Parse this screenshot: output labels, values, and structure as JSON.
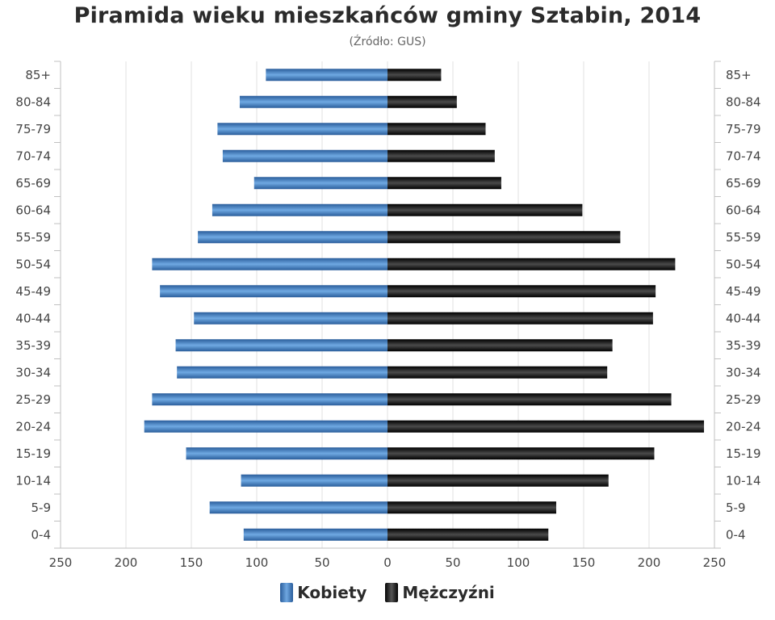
{
  "chart_data": {
    "type": "bar",
    "title": "Piramida wieku mieszkańców gminy Sztabin, 2014",
    "subtitle": "(Źródło: GUS)",
    "categories": [
      "85+",
      "80-84",
      "75-79",
      "70-74",
      "65-69",
      "60-64",
      "55-59",
      "50-54",
      "45-49",
      "40-44",
      "35-39",
      "30-34",
      "25-29",
      "20-24",
      "15-19",
      "10-14",
      "5-9",
      "0-4"
    ],
    "series": [
      {
        "name": "Kobiety",
        "color": "#3d7cc9",
        "values": [
          93,
          113,
          130,
          126,
          102,
          134,
          145,
          180,
          174,
          148,
          162,
          161,
          180,
          186,
          154,
          112,
          136,
          110
        ]
      },
      {
        "name": "Mężczyźni",
        "color": "#111111",
        "values": [
          41,
          53,
          75,
          82,
          87,
          149,
          178,
          220,
          205,
          203,
          172,
          168,
          217,
          242,
          204,
          169,
          129,
          123
        ]
      }
    ],
    "xlim": [
      -250,
      250
    ],
    "xticks": [
      "250",
      "200",
      "150",
      "100",
      "50",
      "0",
      "50",
      "100",
      "150",
      "200",
      "250"
    ],
    "grid": true,
    "legend": "bottom-center"
  }
}
